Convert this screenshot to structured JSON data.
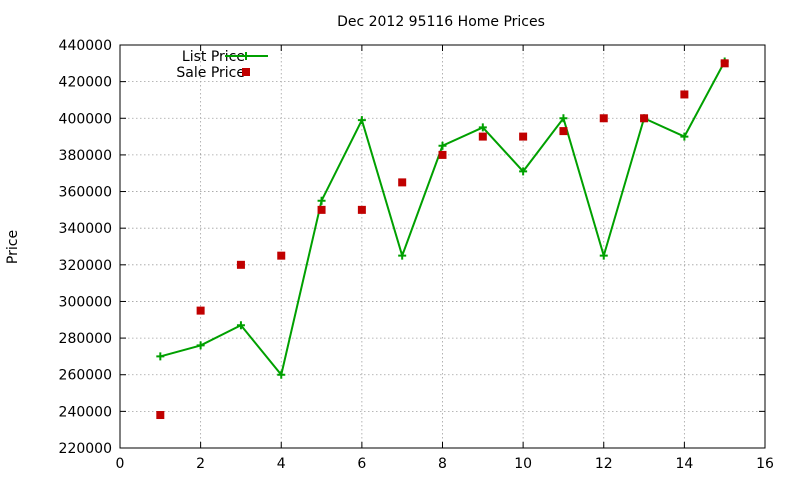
{
  "chart_data": {
    "type": "line",
    "title": "Dec 2012 95116 Home Prices",
    "xlabel": "",
    "ylabel": "Price",
    "xlim": [
      0,
      16
    ],
    "ylim": [
      220000,
      440000
    ],
    "x_ticks": [
      0,
      2,
      4,
      6,
      8,
      10,
      12,
      14,
      16
    ],
    "y_ticks": [
      220000,
      240000,
      260000,
      280000,
      300000,
      320000,
      340000,
      360000,
      380000,
      400000,
      420000,
      440000
    ],
    "grid": true,
    "legend_position": "top-left",
    "series": [
      {
        "name": "List Price",
        "type": "line",
        "marker": "plus",
        "color": "#00a000",
        "x": [
          1,
          2,
          3,
          4,
          5,
          6,
          7,
          8,
          9,
          10,
          11,
          12,
          13,
          14,
          15
        ],
        "y": [
          270000,
          276000,
          287000,
          260000,
          355000,
          399000,
          325000,
          385000,
          395000,
          371000,
          400000,
          325000,
          400000,
          390000,
          431000
        ]
      },
      {
        "name": "Sale Price",
        "type": "scatter",
        "marker": "square",
        "color": "#c00000",
        "x": [
          1,
          2,
          3,
          4,
          5,
          6,
          7,
          8,
          9,
          10,
          11,
          12,
          13,
          14,
          15
        ],
        "y": [
          238000,
          295000,
          320000,
          325000,
          350000,
          350000,
          365000,
          380000,
          390000,
          390000,
          393000,
          400000,
          400000,
          413000,
          430000
        ]
      }
    ]
  }
}
